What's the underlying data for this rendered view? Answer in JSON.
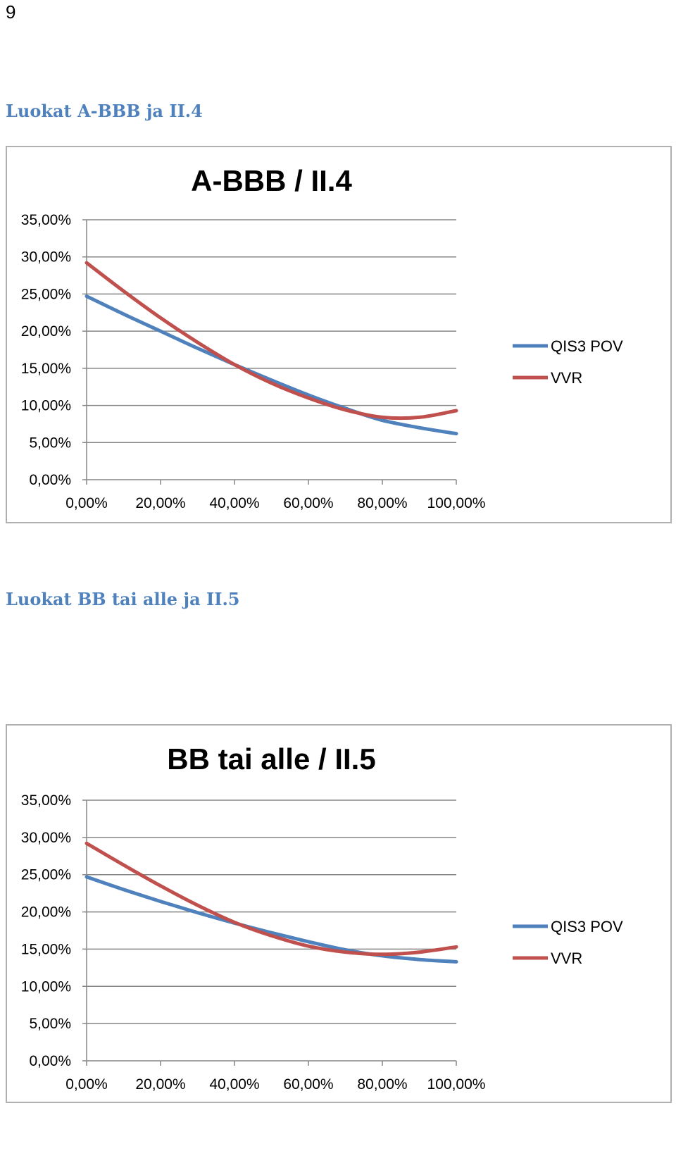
{
  "page_number": "9",
  "sections": [
    {
      "heading": "Luokat A-BBB ja II.4",
      "chart_data": {
        "type": "line",
        "title": "A-BBB / II.4",
        "xlabel": "",
        "ylabel": "",
        "x": [
          0,
          10,
          20,
          30,
          40,
          50,
          60,
          70,
          80,
          90,
          100
        ],
        "x_tick_labels": [
          "0,00%",
          "20,00%",
          "40,00%",
          "60,00%",
          "80,00%",
          "100,00%"
        ],
        "x_ticks": [
          0,
          20,
          40,
          60,
          80,
          100
        ],
        "y_tick_labels": [
          "0,00%",
          "5,00%",
          "10,00%",
          "15,00%",
          "20,00%",
          "25,00%",
          "30,00%",
          "35,00%"
        ],
        "y_ticks": [
          0,
          5,
          10,
          15,
          20,
          25,
          30,
          35
        ],
        "xlim": [
          0,
          100
        ],
        "ylim": [
          0,
          35
        ],
        "grid": true,
        "legend_position": "right",
        "series": [
          {
            "name": "QIS3 POV",
            "color": "#4f81bd",
            "values": [
              24.7,
              22.3,
              20.0,
              17.7,
              15.5,
              13.4,
              11.4,
              9.6,
              8.0,
              7.0,
              6.2
            ]
          },
          {
            "name": "VVR",
            "color": "#c0504d",
            "values": [
              29.2,
              25.4,
              21.8,
              18.5,
              15.5,
              13.0,
              11.0,
              9.4,
              8.4,
              8.4,
              9.3
            ]
          }
        ]
      }
    },
    {
      "heading": "Luokat BB tai alle ja II.5",
      "chart_data": {
        "type": "line",
        "title": "BB tai alle / II.5",
        "xlabel": "",
        "ylabel": "",
        "x": [
          0,
          10,
          20,
          30,
          40,
          50,
          60,
          70,
          80,
          90,
          100
        ],
        "x_tick_labels": [
          "0,00%",
          "20,00%",
          "40,00%",
          "60,00%",
          "80,00%",
          "100,00%"
        ],
        "x_ticks": [
          0,
          20,
          40,
          60,
          80,
          100
        ],
        "y_tick_labels": [
          "0,00%",
          "5,00%",
          "10,00%",
          "15,00%",
          "20,00%",
          "25,00%",
          "30,00%",
          "35,00%"
        ],
        "y_ticks": [
          0,
          5,
          10,
          15,
          20,
          25,
          30,
          35
        ],
        "xlim": [
          0,
          100
        ],
        "ylim": [
          0,
          35
        ],
        "grid": true,
        "legend_position": "right",
        "series": [
          {
            "name": "QIS3 POV",
            "color": "#4f81bd",
            "values": [
              24.7,
              23.0,
              21.4,
              19.9,
              18.5,
              17.2,
              16.0,
              14.9,
              14.1,
              13.6,
              13.3
            ]
          },
          {
            "name": "VVR",
            "color": "#c0504d",
            "values": [
              29.2,
              26.3,
              23.5,
              20.9,
              18.6,
              16.8,
              15.4,
              14.6,
              14.3,
              14.6,
              15.3
            ]
          }
        ]
      }
    }
  ]
}
